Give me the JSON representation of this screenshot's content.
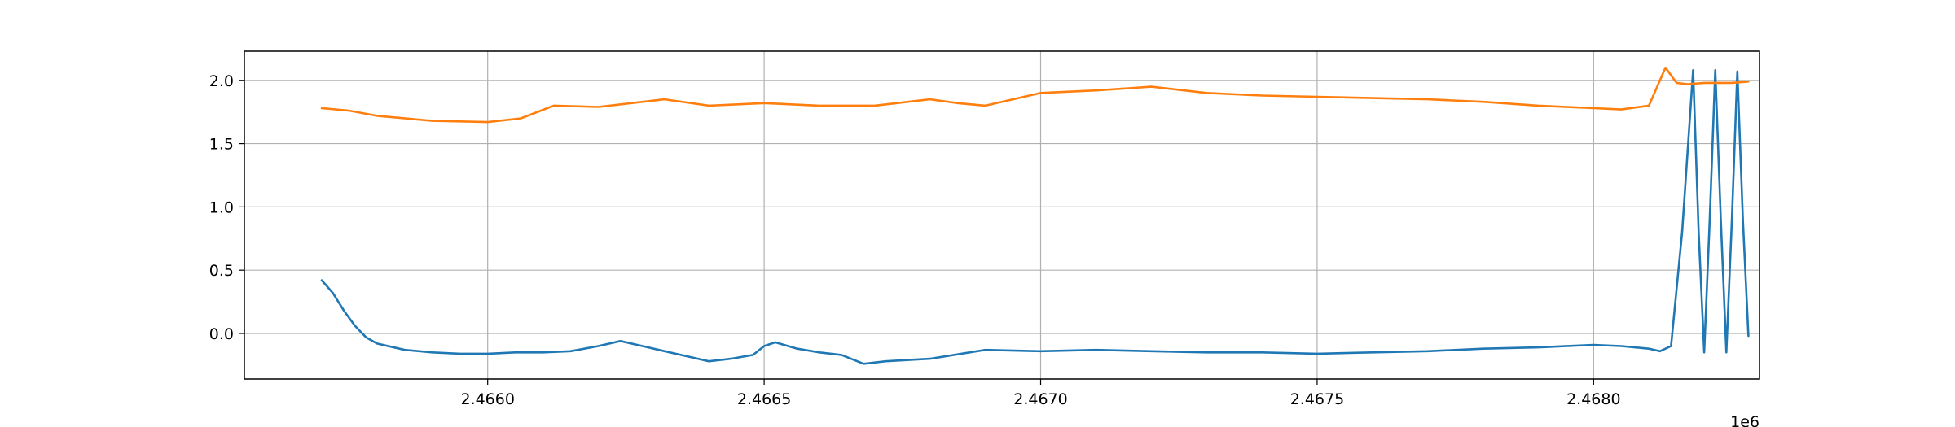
{
  "chart_data": {
    "type": "line",
    "title": "",
    "xlabel": "",
    "ylabel": "",
    "x_offset_label": "1e6",
    "xlim": [
      2.46556,
      2.4683
    ],
    "ylim": [
      -0.36,
      2.23
    ],
    "x_ticks": [
      2.466,
      2.4665,
      2.467,
      2.4675,
      2.468
    ],
    "x_tick_labels": [
      "2.4660",
      "2.4665",
      "2.4670",
      "2.4675",
      "2.4680"
    ],
    "y_ticks": [
      0.0,
      0.5,
      1.0,
      1.5,
      2.0
    ],
    "y_tick_labels": [
      "0.0",
      "0.5",
      "1.0",
      "1.5",
      "2.0"
    ],
    "grid": true,
    "series": [
      {
        "color": "#1f77b4",
        "x": [
          2.4657,
          2.46572,
          2.46574,
          2.46576,
          2.46578,
          2.4658,
          2.46585,
          2.4659,
          2.46595,
          2.466,
          2.46605,
          2.4661,
          2.46615,
          2.4662,
          2.46624,
          2.46628,
          2.46632,
          2.46636,
          2.4664,
          2.46644,
          2.46648,
          2.4665,
          2.46652,
          2.46656,
          2.4666,
          2.46664,
          2.46668,
          2.46672,
          2.4668,
          2.4669,
          2.467,
          2.4671,
          2.4672,
          2.4673,
          2.4674,
          2.4675,
          2.4676,
          2.4677,
          2.4678,
          2.4679,
          2.468,
          2.46805,
          2.4681,
          2.46812,
          2.46814,
          2.46816,
          2.46818,
          2.46819,
          2.4682,
          2.46821,
          2.46822,
          2.46823,
          2.46824,
          2.46825,
          2.46826,
          2.46827,
          2.46828
        ],
        "y": [
          0.42,
          0.32,
          0.18,
          0.06,
          -0.03,
          -0.08,
          -0.13,
          -0.15,
          -0.16,
          -0.16,
          -0.15,
          -0.15,
          -0.14,
          -0.1,
          -0.06,
          -0.1,
          -0.14,
          -0.18,
          -0.22,
          -0.2,
          -0.17,
          -0.1,
          -0.07,
          -0.12,
          -0.15,
          -0.17,
          -0.24,
          -0.22,
          -0.2,
          -0.13,
          -0.14,
          -0.13,
          -0.14,
          -0.15,
          -0.15,
          -0.16,
          -0.15,
          -0.14,
          -0.12,
          -0.11,
          -0.09,
          -0.1,
          -0.12,
          -0.14,
          -0.1,
          0.8,
          2.08,
          0.8,
          -0.15,
          0.9,
          2.08,
          0.9,
          -0.15,
          0.9,
          2.07,
          0.9,
          -0.02
        ]
      },
      {
        "color": "#ff7f0e",
        "x": [
          2.4657,
          2.46575,
          2.4658,
          2.4659,
          2.466,
          2.46606,
          2.46612,
          2.4662,
          2.46632,
          2.4664,
          2.4665,
          2.4666,
          2.4667,
          2.4668,
          2.46685,
          2.4669,
          2.467,
          2.4671,
          2.4672,
          2.4673,
          2.4674,
          2.4675,
          2.4676,
          2.4677,
          2.4678,
          2.4679,
          2.468,
          2.46805,
          2.4681,
          2.46813,
          2.46815,
          2.46817,
          2.4682,
          2.46825,
          2.46828
        ],
        "y": [
          1.78,
          1.76,
          1.72,
          1.68,
          1.67,
          1.7,
          1.8,
          1.79,
          1.85,
          1.8,
          1.82,
          1.8,
          1.8,
          1.85,
          1.82,
          1.8,
          1.9,
          1.92,
          1.95,
          1.9,
          1.88,
          1.87,
          1.86,
          1.85,
          1.83,
          1.8,
          1.78,
          1.77,
          1.8,
          2.1,
          1.98,
          1.97,
          1.98,
          1.98,
          1.99
        ]
      }
    ]
  }
}
